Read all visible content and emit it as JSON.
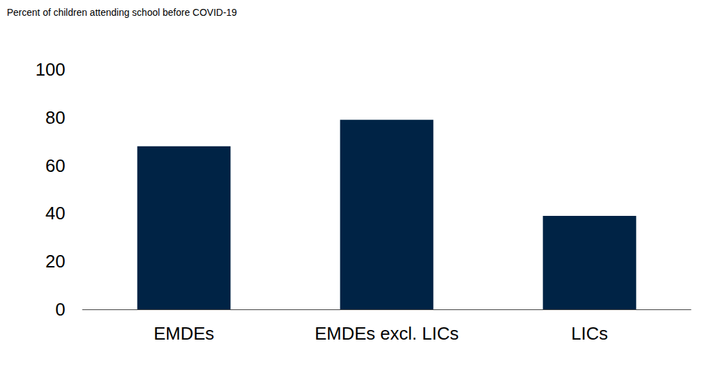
{
  "chart_data": {
    "type": "bar",
    "title": "Percent of children attending school before COVID-19",
    "categories": [
      "EMDEs",
      "EMDEs excl. LICs",
      "LICs"
    ],
    "values": [
      68,
      79,
      39
    ],
    "color": "#002345",
    "ylim": [
      0,
      100
    ],
    "yticks": [
      0,
      20,
      40,
      60,
      80,
      100
    ],
    "grid": false
  }
}
